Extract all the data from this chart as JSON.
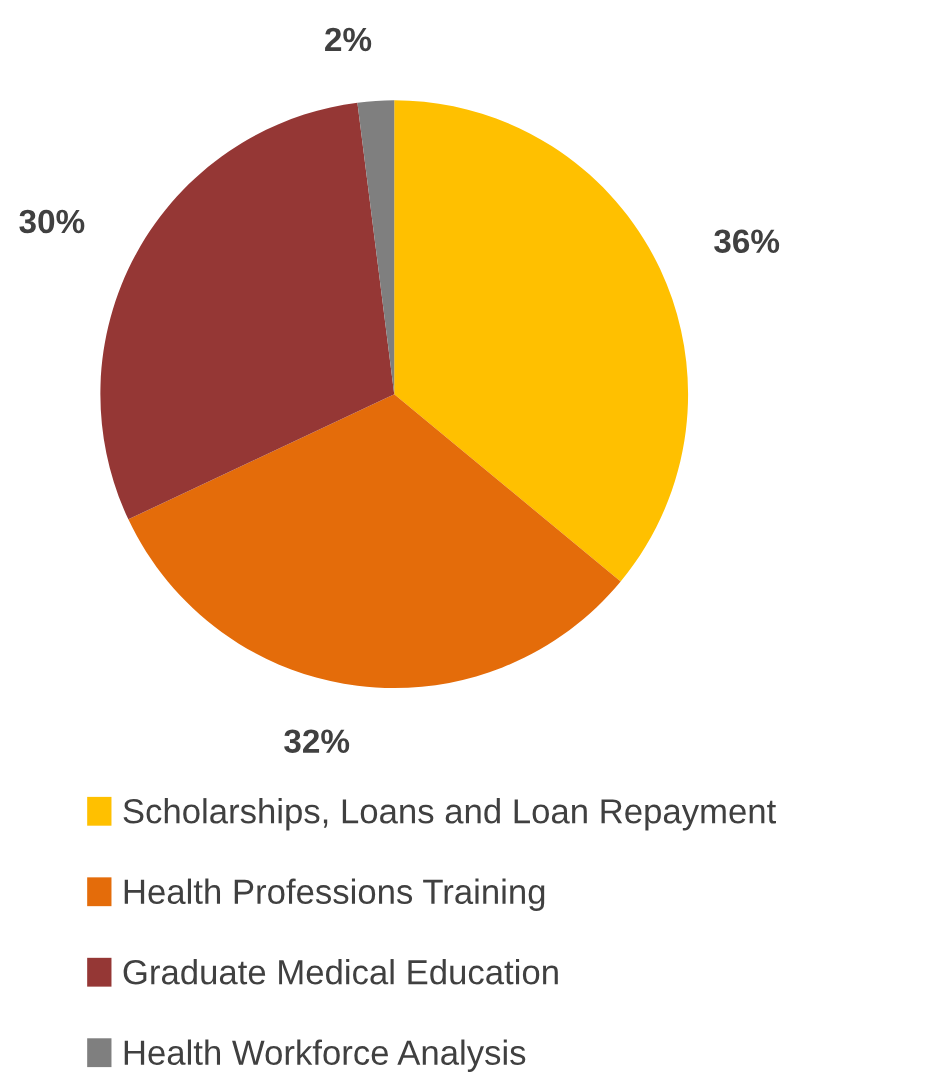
{
  "chart_data": {
    "type": "pie",
    "categories": [
      "Scholarships, Loans and Loan Repayment",
      "Health Professions Training",
      "Graduate Medical Education",
      "Health Workforce Analysis"
    ],
    "values": [
      36,
      32,
      30,
      2
    ],
    "colors": [
      "#ffc000",
      "#e46c0a",
      "#953735",
      "#7f7f7f"
    ],
    "value_labels": [
      "36%",
      "32%",
      "30%",
      "2%"
    ],
    "legend": "bottom"
  }
}
